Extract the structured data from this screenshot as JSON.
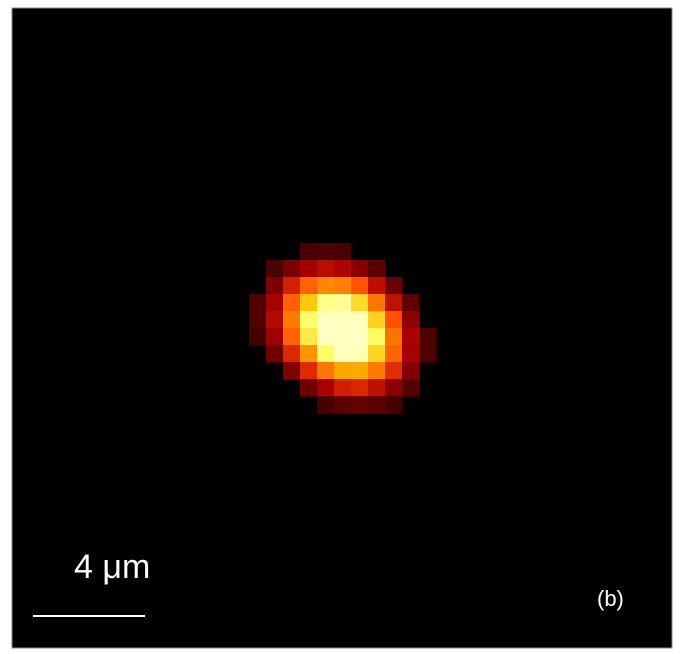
{
  "scale_bar": {
    "label": "4 μm"
  },
  "panel_label": "(b)"
}
